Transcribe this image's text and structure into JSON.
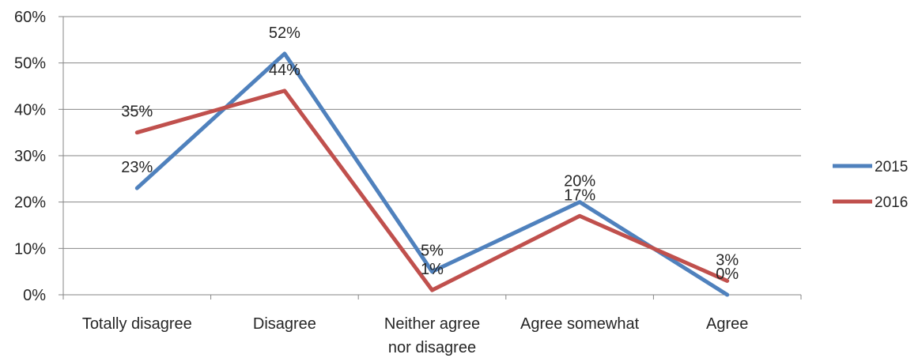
{
  "chart_data": {
    "type": "line",
    "title": "",
    "xlabel": "",
    "ylabel": "",
    "categories": [
      [
        "Totally disagree"
      ],
      [
        "Disagree"
      ],
      [
        "Neither agree",
        "nor disagree"
      ],
      [
        "Agree somewhat"
      ],
      [
        "Agree"
      ]
    ],
    "y_ticks": [
      "0%",
      "10%",
      "20%",
      "30%",
      "40%",
      "50%",
      "60%"
    ],
    "ylim": [
      0,
      60
    ],
    "grid": true,
    "legend_position": "right",
    "series": [
      {
        "name": "2015",
        "color": "#4f81bd",
        "values": [
          23,
          52,
          5,
          20,
          0
        ],
        "labels": [
          "23%",
          "52%",
          "5%",
          "20%",
          "0%"
        ]
      },
      {
        "name": "2016",
        "color": "#c0504d",
        "values": [
          35,
          44,
          1,
          17,
          3
        ],
        "labels": [
          "35%",
          "44%",
          "1%",
          "17%",
          "3%"
        ]
      }
    ]
  }
}
